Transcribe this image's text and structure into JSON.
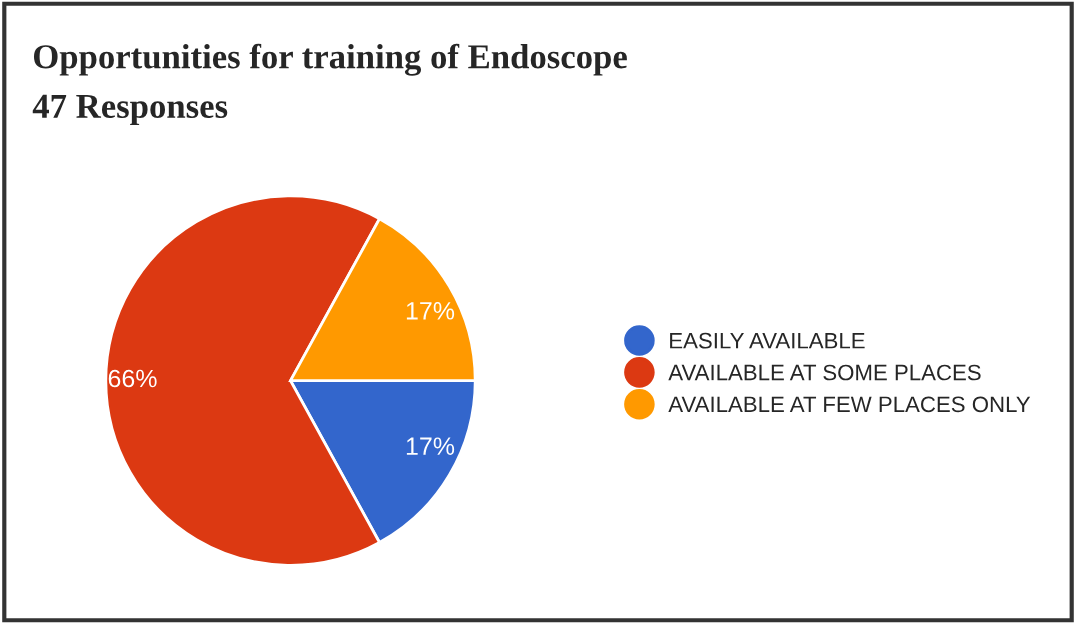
{
  "chart_data": {
    "type": "pie",
    "title": "Opportunities for training of Endoscope",
    "subtitle": "47 Responses",
    "categories": [
      "EASILY AVAILABLE",
      "AVAILABLE AT SOME PLACES",
      "AVAILABLE AT FEW PLACES ONLY"
    ],
    "values": [
      17,
      66,
      17
    ],
    "colors": [
      "#3366cc",
      "#dc3912",
      "#ff9900"
    ],
    "value_labels": [
      "17%",
      "66%",
      "17%"
    ],
    "legend": "right"
  }
}
